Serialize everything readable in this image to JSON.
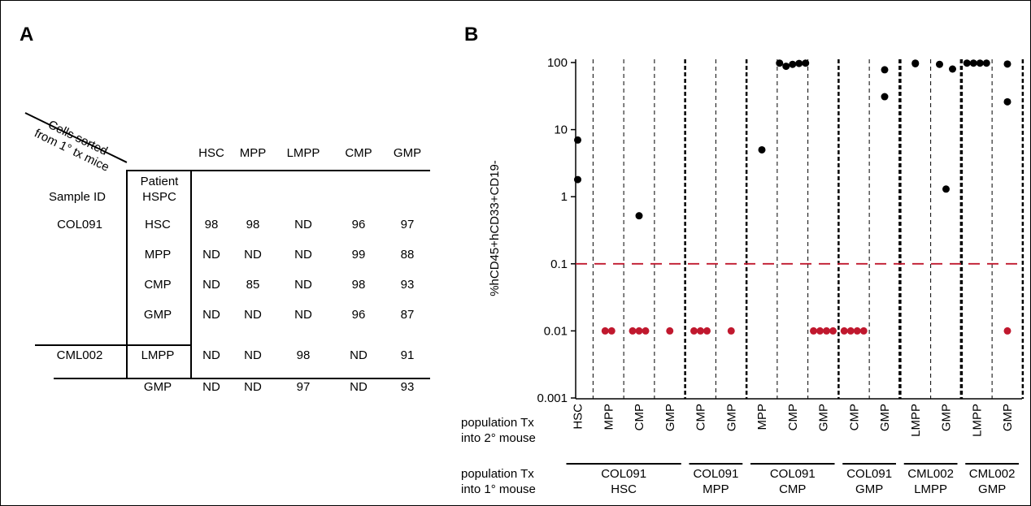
{
  "panel_a": {
    "label": "A",
    "diagonal_header": [
      "Cells sorted",
      "from 1° tx mice"
    ],
    "columns": [
      "HSC",
      "MPP",
      "LMPP",
      "CMP",
      "GMP"
    ],
    "sample_id_header": "Sample ID",
    "patient_header": [
      "Patient",
      "HSPC"
    ],
    "rows": [
      {
        "sample": "COL091",
        "hspc": "HSC",
        "values": [
          "98",
          "98",
          "ND",
          "96",
          "97"
        ]
      },
      {
        "sample": "",
        "hspc": "MPP",
        "values": [
          "ND",
          "ND",
          "ND",
          "99",
          "88"
        ]
      },
      {
        "sample": "",
        "hspc": "CMP",
        "values": [
          "ND",
          "85",
          "ND",
          "98",
          "93"
        ]
      },
      {
        "sample": "",
        "hspc": "GMP",
        "values": [
          "ND",
          "ND",
          "ND",
          "96",
          "87"
        ]
      },
      {
        "sample": "CML002",
        "hspc": "LMPP",
        "values": [
          "ND",
          "ND",
          "98",
          "ND",
          "91"
        ]
      },
      {
        "sample": "",
        "hspc": "GMP",
        "values": [
          "ND",
          "ND",
          "97",
          "ND",
          "93"
        ]
      }
    ]
  },
  "panel_b": {
    "label": "B",
    "row_label_2": [
      "population Tx",
      "into 2° mouse"
    ],
    "row_label_1": [
      "population Tx",
      "into 1° mouse"
    ]
  },
  "colors": {
    "positive": "#000000",
    "negative": "#c0182e",
    "threshold": "#c0182e"
  },
  "chart_data": {
    "type": "scatter",
    "scale": "log",
    "ylabel": "%hCD45+hCD33+CD19-",
    "ylim": [
      0.001,
      100
    ],
    "yticks": [
      {
        "value": 0.001,
        "label": "0.001"
      },
      {
        "value": 0.01,
        "label": "0.01"
      },
      {
        "value": 0.1,
        "label": "0.1"
      },
      {
        "value": 1,
        "label": "1"
      },
      {
        "value": 10,
        "label": "10"
      },
      {
        "value": 100,
        "label": "100"
      }
    ],
    "threshold": 0.1,
    "categories": [
      "HSC",
      "MPP",
      "CMP",
      "GMP",
      "CMP",
      "GMP",
      "MPP",
      "CMP",
      "GMP",
      "CMP",
      "GMP",
      "LMPP",
      "GMP",
      "LMPP",
      "GMP"
    ],
    "groups": [
      {
        "line1": "COL091",
        "line2": "HSC",
        "start": 0,
        "end": 3
      },
      {
        "line1": "COL091",
        "line2": "MPP",
        "start": 4,
        "end": 5
      },
      {
        "line1": "COL091",
        "line2": "CMP",
        "start": 6,
        "end": 8
      },
      {
        "line1": "COL091",
        "line2": "GMP",
        "start": 9,
        "end": 10
      },
      {
        "line1": "CML002",
        "line2": "LMPP",
        "start": 11,
        "end": 12
      },
      {
        "line1": "CML002",
        "line2": "GMP",
        "start": 13,
        "end": 14
      }
    ],
    "points": [
      {
        "cat": 0,
        "values": [
          7,
          1.8
        ],
        "negative": []
      },
      {
        "cat": 1,
        "values": [],
        "negative": [
          0.01,
          0.01
        ]
      },
      {
        "cat": 2,
        "values": [
          0.52
        ],
        "negative": [
          0.01,
          0.01,
          0.01
        ]
      },
      {
        "cat": 3,
        "values": [],
        "negative": [
          0.01
        ]
      },
      {
        "cat": 4,
        "values": [],
        "negative": [
          0.01,
          0.01,
          0.01
        ]
      },
      {
        "cat": 5,
        "values": [],
        "negative": [
          0.01
        ]
      },
      {
        "cat": 6,
        "values": [
          5
        ],
        "negative": []
      },
      {
        "cat": 7,
        "values": [
          98,
          88,
          94,
          97,
          98
        ],
        "negative": []
      },
      {
        "cat": 8,
        "values": [],
        "negative": [
          0.01,
          0.01,
          0.01,
          0.01
        ]
      },
      {
        "cat": 9,
        "values": [],
        "negative": [
          0.01,
          0.01,
          0.01,
          0.01
        ]
      },
      {
        "cat": 10,
        "values": [
          78,
          31
        ],
        "negative": []
      },
      {
        "cat": 11,
        "values": [
          96,
          98
        ],
        "negative": []
      },
      {
        "cat": 12,
        "values": [
          94,
          1.3,
          80
        ],
        "negative": []
      },
      {
        "cat": 13,
        "values": [
          98,
          98,
          98,
          98
        ],
        "negative": []
      },
      {
        "cat": 14,
        "values": [
          95,
          26
        ],
        "negative": [
          0.01
        ]
      }
    ]
  }
}
